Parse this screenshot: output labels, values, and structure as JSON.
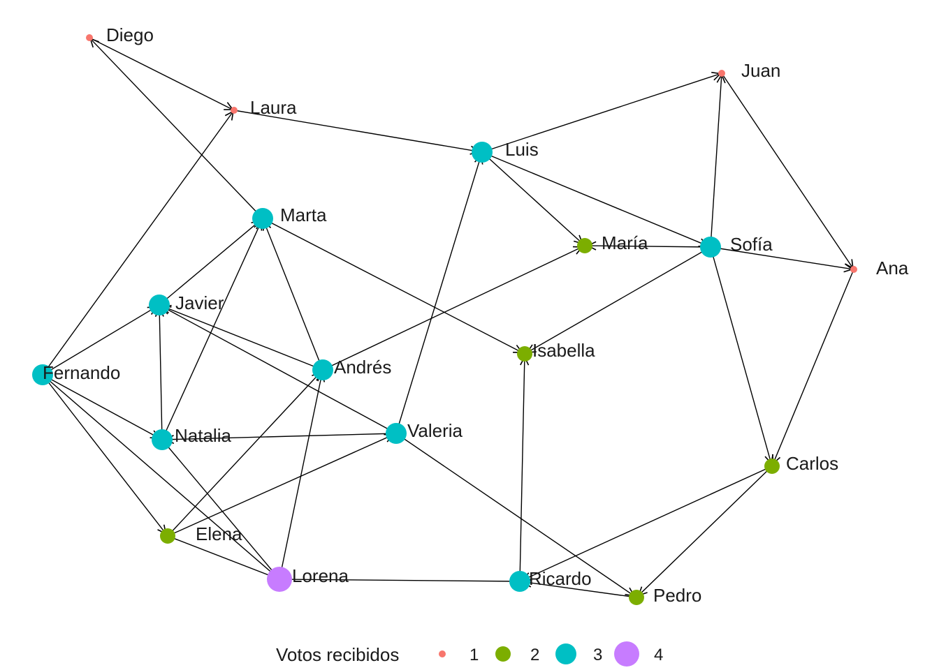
{
  "colors": {
    "1": "#F8766D",
    "2": "#7CAE00",
    "3": "#00BFC4",
    "4": "#C77CFF"
  },
  "nodes": [
    {
      "id": "Diego",
      "label": "Diego",
      "votes": 1
    },
    {
      "id": "Laura",
      "label": "Laura",
      "votes": 1
    },
    {
      "id": "Juan",
      "label": "Juan",
      "votes": 1
    },
    {
      "id": "Ana",
      "label": "Ana",
      "votes": 1
    },
    {
      "id": "Luis",
      "label": "Luis",
      "votes": 3
    },
    {
      "id": "Marta",
      "label": "Marta",
      "votes": 3
    },
    {
      "id": "Maria",
      "label": "María",
      "votes": 2
    },
    {
      "id": "Sofia",
      "label": "Sofía",
      "votes": 3
    },
    {
      "id": "Javier",
      "label": "Javier",
      "votes": 3
    },
    {
      "id": "Fernando",
      "label": "Fernando",
      "votes": 3
    },
    {
      "id": "Andres",
      "label": "Andrés",
      "votes": 3
    },
    {
      "id": "Isabella",
      "label": "Isabella",
      "votes": 2
    },
    {
      "id": "Natalia",
      "label": "Natalia",
      "votes": 3
    },
    {
      "id": "Valeria",
      "label": "Valeria",
      "votes": 3
    },
    {
      "id": "Carlos",
      "label": "Carlos",
      "votes": 2
    },
    {
      "id": "Elena",
      "label": "Elena",
      "votes": 2
    },
    {
      "id": "Lorena",
      "label": "Lorena",
      "votes": 4
    },
    {
      "id": "Ricardo",
      "label": "Ricardo",
      "votes": 3
    },
    {
      "id": "Pedro",
      "label": "Pedro",
      "votes": 2
    }
  ],
  "edges": [
    {
      "from": "Marta",
      "to": "Diego"
    },
    {
      "from": "Diego",
      "to": "Laura"
    },
    {
      "from": "Fernando",
      "to": "Laura"
    },
    {
      "from": "Laura",
      "to": "Luis"
    },
    {
      "from": "Luis",
      "to": "Juan"
    },
    {
      "from": "Sofia",
      "to": "Juan"
    },
    {
      "from": "Juan",
      "to": "Ana"
    },
    {
      "from": "Sofia",
      "to": "Ana"
    },
    {
      "from": "Luis",
      "to": "Maria"
    },
    {
      "from": "Luis",
      "to": "Sofia"
    },
    {
      "from": "Sofia",
      "to": "Maria"
    },
    {
      "from": "Valeria",
      "to": "Luis"
    },
    {
      "from": "Andres",
      "to": "Maria"
    },
    {
      "from": "Sofia",
      "to": "Isabella"
    },
    {
      "from": "Marta",
      "to": "Isabella"
    },
    {
      "from": "Sofia",
      "to": "Carlos"
    },
    {
      "from": "Ana",
      "to": "Carlos"
    },
    {
      "from": "Javier",
      "to": "Marta"
    },
    {
      "from": "Natalia",
      "to": "Marta"
    },
    {
      "from": "Andres",
      "to": "Marta"
    },
    {
      "from": "Andres",
      "to": "Javier"
    },
    {
      "from": "Valeria",
      "to": "Javier"
    },
    {
      "from": "Natalia",
      "to": "Javier"
    },
    {
      "from": "Fernando",
      "to": "Javier"
    },
    {
      "from": "Fernando",
      "to": "Natalia"
    },
    {
      "from": "Valeria",
      "to": "Natalia"
    },
    {
      "from": "Lorena",
      "to": "Andres"
    },
    {
      "from": "Elena",
      "to": "Andres"
    },
    {
      "from": "Elena",
      "to": "Valeria"
    },
    {
      "from": "Fernando",
      "to": "Elena"
    },
    {
      "from": "Fernando",
      "to": "Lorena"
    },
    {
      "from": "Natalia",
      "to": "Lorena"
    },
    {
      "from": "Elena",
      "to": "Lorena"
    },
    {
      "from": "Ricardo",
      "to": "Lorena"
    },
    {
      "from": "Ricardo",
      "to": "Isabella"
    },
    {
      "from": "Valeria",
      "to": "Pedro"
    },
    {
      "from": "Pedro",
      "to": "Ricardo"
    },
    {
      "from": "Carlos",
      "to": "Ricardo"
    },
    {
      "from": "Carlos",
      "to": "Pedro"
    }
  ],
  "legend": {
    "title": "Votos recibidos",
    "items": [
      {
        "votes": 1,
        "label": "1"
      },
      {
        "votes": 2,
        "label": "2"
      },
      {
        "votes": 3,
        "label": "3"
      },
      {
        "votes": 4,
        "label": "4"
      }
    ]
  }
}
